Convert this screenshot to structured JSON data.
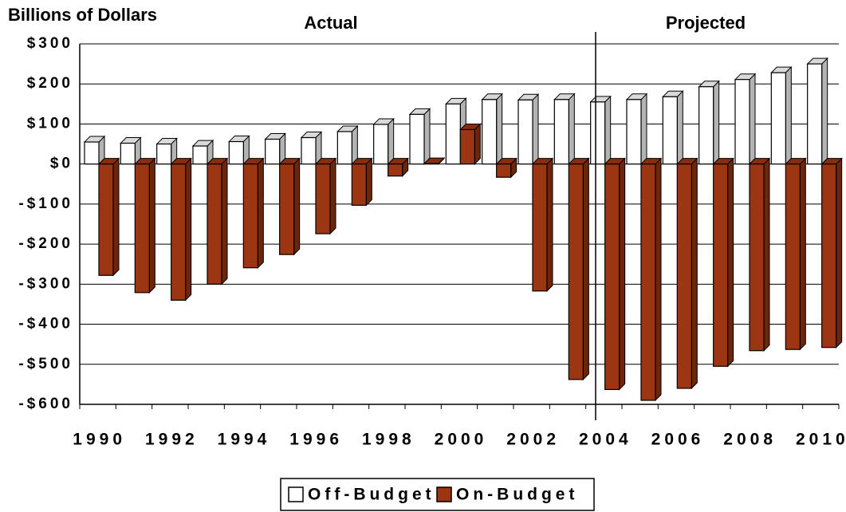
{
  "chart_data": {
    "type": "bar3d",
    "y_axis_label": "Billions of Dollars",
    "annotations": [
      "Actual",
      "Projected"
    ],
    "categories": [
      "1990",
      null,
      "1992",
      null,
      "1994",
      null,
      "1996",
      null,
      "1998",
      null,
      "2000",
      null,
      "2002",
      null,
      "2004",
      null,
      "2006",
      null,
      "2008",
      null,
      "2010"
    ],
    "series": [
      {
        "name": "Off-Budget",
        "color": "#ffffff",
        "values": [
          55,
          52,
          50,
          45,
          56,
          62,
          66,
          81,
          99,
          124,
          150,
          161,
          160,
          161,
          155,
          161,
          168,
          193,
          211,
          228,
          250
        ]
      },
      {
        "name": "On-Budget",
        "color": "#9c3511",
        "values": [
          -278,
          -321,
          -340,
          -300,
          -259,
          -226,
          -174,
          -103,
          -30,
          1,
          86,
          -33,
          -317,
          -538,
          -563,
          -590,
          -560,
          -505,
          -466,
          -463,
          -458
        ]
      }
    ],
    "ylim": [
      -600,
      300
    ],
    "yticks": [
      {
        "value": 300,
        "label": "$300"
      },
      {
        "value": 200,
        "label": "$200"
      },
      {
        "value": 100,
        "label": "$100"
      },
      {
        "value": 0,
        "label": "$0"
      },
      {
        "value": -100,
        "label": "-$100"
      },
      {
        "value": -200,
        "label": "-$200"
      },
      {
        "value": -300,
        "label": "-$300"
      },
      {
        "value": -400,
        "label": "-$400"
      },
      {
        "value": -500,
        "label": "-$500"
      },
      {
        "value": -600,
        "label": "-$600"
      }
    ],
    "grid": true
  }
}
